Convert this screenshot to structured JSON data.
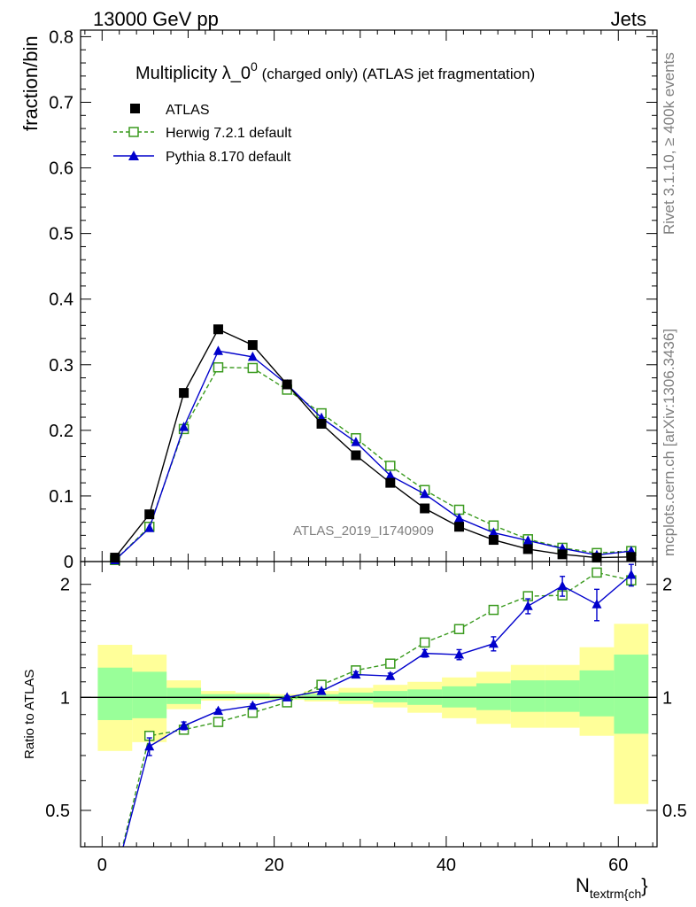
{
  "header": {
    "energy_label": "13000 GeV pp",
    "category_label": "Jets"
  },
  "side_text": {
    "rivet": "Rivet 3.1.10, ≥ 400k events",
    "source": "mcplots.cern.ch [arXiv:1306.3436]"
  },
  "chart_data": [
    {
      "type": "scatter",
      "title_main": "Multiplicity λ_0",
      "title_sup": "0",
      "title_rest": " (charged only) (ATLAS jet fragmentation)",
      "ylabel": "fraction/bin",
      "xlabel_main": "N",
      "xlabel_sub": "textrm{ch",
      "xlabel_brace": "}",
      "watermark": "ATLAS_2019_I1740909",
      "xlim": [
        -2.5,
        64.5
      ],
      "ylim": [
        0,
        0.81
      ],
      "y_ticks": [
        0,
        0.1,
        0.2,
        0.3,
        0.4,
        0.5,
        0.6,
        0.7,
        0.8
      ],
      "y_tick_labels": [
        "0",
        "0.1",
        "0.2",
        "0.3",
        "0.4",
        "0.5",
        "0.6",
        "0.7",
        "0.8"
      ],
      "x_ticks": [
        0,
        20,
        40,
        60
      ],
      "x_tick_labels": [
        "0",
        "20",
        "40",
        "60"
      ],
      "legend_position": "top-left",
      "x": [
        1.5,
        5.5,
        9.5,
        13.5,
        17.5,
        21.5,
        25.5,
        29.5,
        33.5,
        37.5,
        41.5,
        45.5,
        49.5,
        53.5,
        57.5,
        61.5
      ],
      "bin_edges": [
        -0.5,
        3.5,
        7.5,
        11.5,
        15.5,
        19.5,
        23.5,
        27.5,
        31.5,
        35.5,
        39.5,
        43.5,
        47.5,
        51.5,
        55.5,
        59.5,
        63.5
      ],
      "series": [
        {
          "name": "ATLAS",
          "marker": "filled-square",
          "color": "#000000",
          "values": [
            0.006,
            0.072,
            0.257,
            0.354,
            0.33,
            0.27,
            0.21,
            0.162,
            0.12,
            0.081,
            0.053,
            0.033,
            0.019,
            0.011,
            0.006,
            0.007
          ]
        },
        {
          "name": "Herwig 7.2.1 default",
          "marker": "open-square",
          "line": "dashed",
          "color": "#3a9a1e",
          "values": [
            0.002,
            0.053,
            0.202,
            0.296,
            0.295,
            0.262,
            0.226,
            0.188,
            0.146,
            0.109,
            0.079,
            0.055,
            0.034,
            0.021,
            0.013,
            0.016
          ]
        },
        {
          "name": "Pythia 8.170 default",
          "marker": "filled-triangle",
          "line": "solid",
          "color": "#0000cc",
          "values": [
            0.002,
            0.051,
            0.205,
            0.321,
            0.312,
            0.27,
            0.219,
            0.182,
            0.131,
            0.103,
            0.066,
            0.044,
            0.032,
            0.02,
            0.01,
            0.016
          ]
        }
      ]
    },
    {
      "type": "scatter",
      "ylabel": "Ratio to ATLAS",
      "ylim": [
        0.4,
        2.3
      ],
      "y_ticks": [
        0.5,
        1,
        2
      ],
      "y_tick_labels": [
        "0.5",
        "1",
        "2"
      ],
      "reference": 1,
      "band_outer": {
        "name": "",
        "color": "#ffff99",
        "lo": [
          0.72,
          0.76,
          0.93,
          0.98,
          0.985,
          0.985,
          0.975,
          0.96,
          0.94,
          0.91,
          0.88,
          0.85,
          0.83,
          0.83,
          0.79,
          0.52
        ],
        "hi": [
          1.38,
          1.3,
          1.11,
          1.04,
          1.03,
          1.02,
          1.04,
          1.06,
          1.08,
          1.1,
          1.13,
          1.17,
          1.22,
          1.22,
          1.36,
          1.57
        ]
      },
      "band_inner": {
        "name": "",
        "color": "#99ff99",
        "lo": [
          0.87,
          0.88,
          0.96,
          0.99,
          0.99,
          0.99,
          0.985,
          0.98,
          0.97,
          0.955,
          0.94,
          0.925,
          0.915,
          0.915,
          0.89,
          0.8
        ],
        "hi": [
          1.2,
          1.17,
          1.06,
          1.02,
          1.02,
          1.01,
          1.02,
          1.03,
          1.04,
          1.05,
          1.07,
          1.09,
          1.11,
          1.11,
          1.18,
          1.3
        ]
      },
      "series": [
        {
          "name": "Herwig 7.2.1 default",
          "marker": "open-square",
          "line": "dashed",
          "color": "#3a9a1e",
          "values": [
            0.33,
            0.79,
            0.82,
            0.86,
            0.91,
            0.97,
            1.08,
            1.18,
            1.23,
            1.4,
            1.52,
            1.71,
            1.86,
            1.87,
            2.15,
            2.05
          ],
          "err": [
            0,
            0.01,
            0.01,
            0.01,
            0.01,
            0.01,
            0.01,
            0.01,
            0.01,
            0.01,
            0.01,
            0.02,
            0.02,
            0.03,
            0.05,
            0.06
          ]
        },
        {
          "name": "Pythia 8.170 default",
          "marker": "filled-triangle",
          "line": "solid",
          "color": "#0000cc",
          "values": [
            0.33,
            0.74,
            0.84,
            0.92,
            0.95,
            1.0,
            1.04,
            1.15,
            1.14,
            1.31,
            1.3,
            1.39,
            1.75,
            1.98,
            1.77,
            2.12
          ],
          "err": [
            0,
            0.04,
            0.02,
            0.01,
            0.01,
            0.01,
            0.01,
            0.02,
            0.02,
            0.03,
            0.04,
            0.06,
            0.08,
            0.12,
            0.17,
            0.14
          ]
        }
      ]
    }
  ]
}
